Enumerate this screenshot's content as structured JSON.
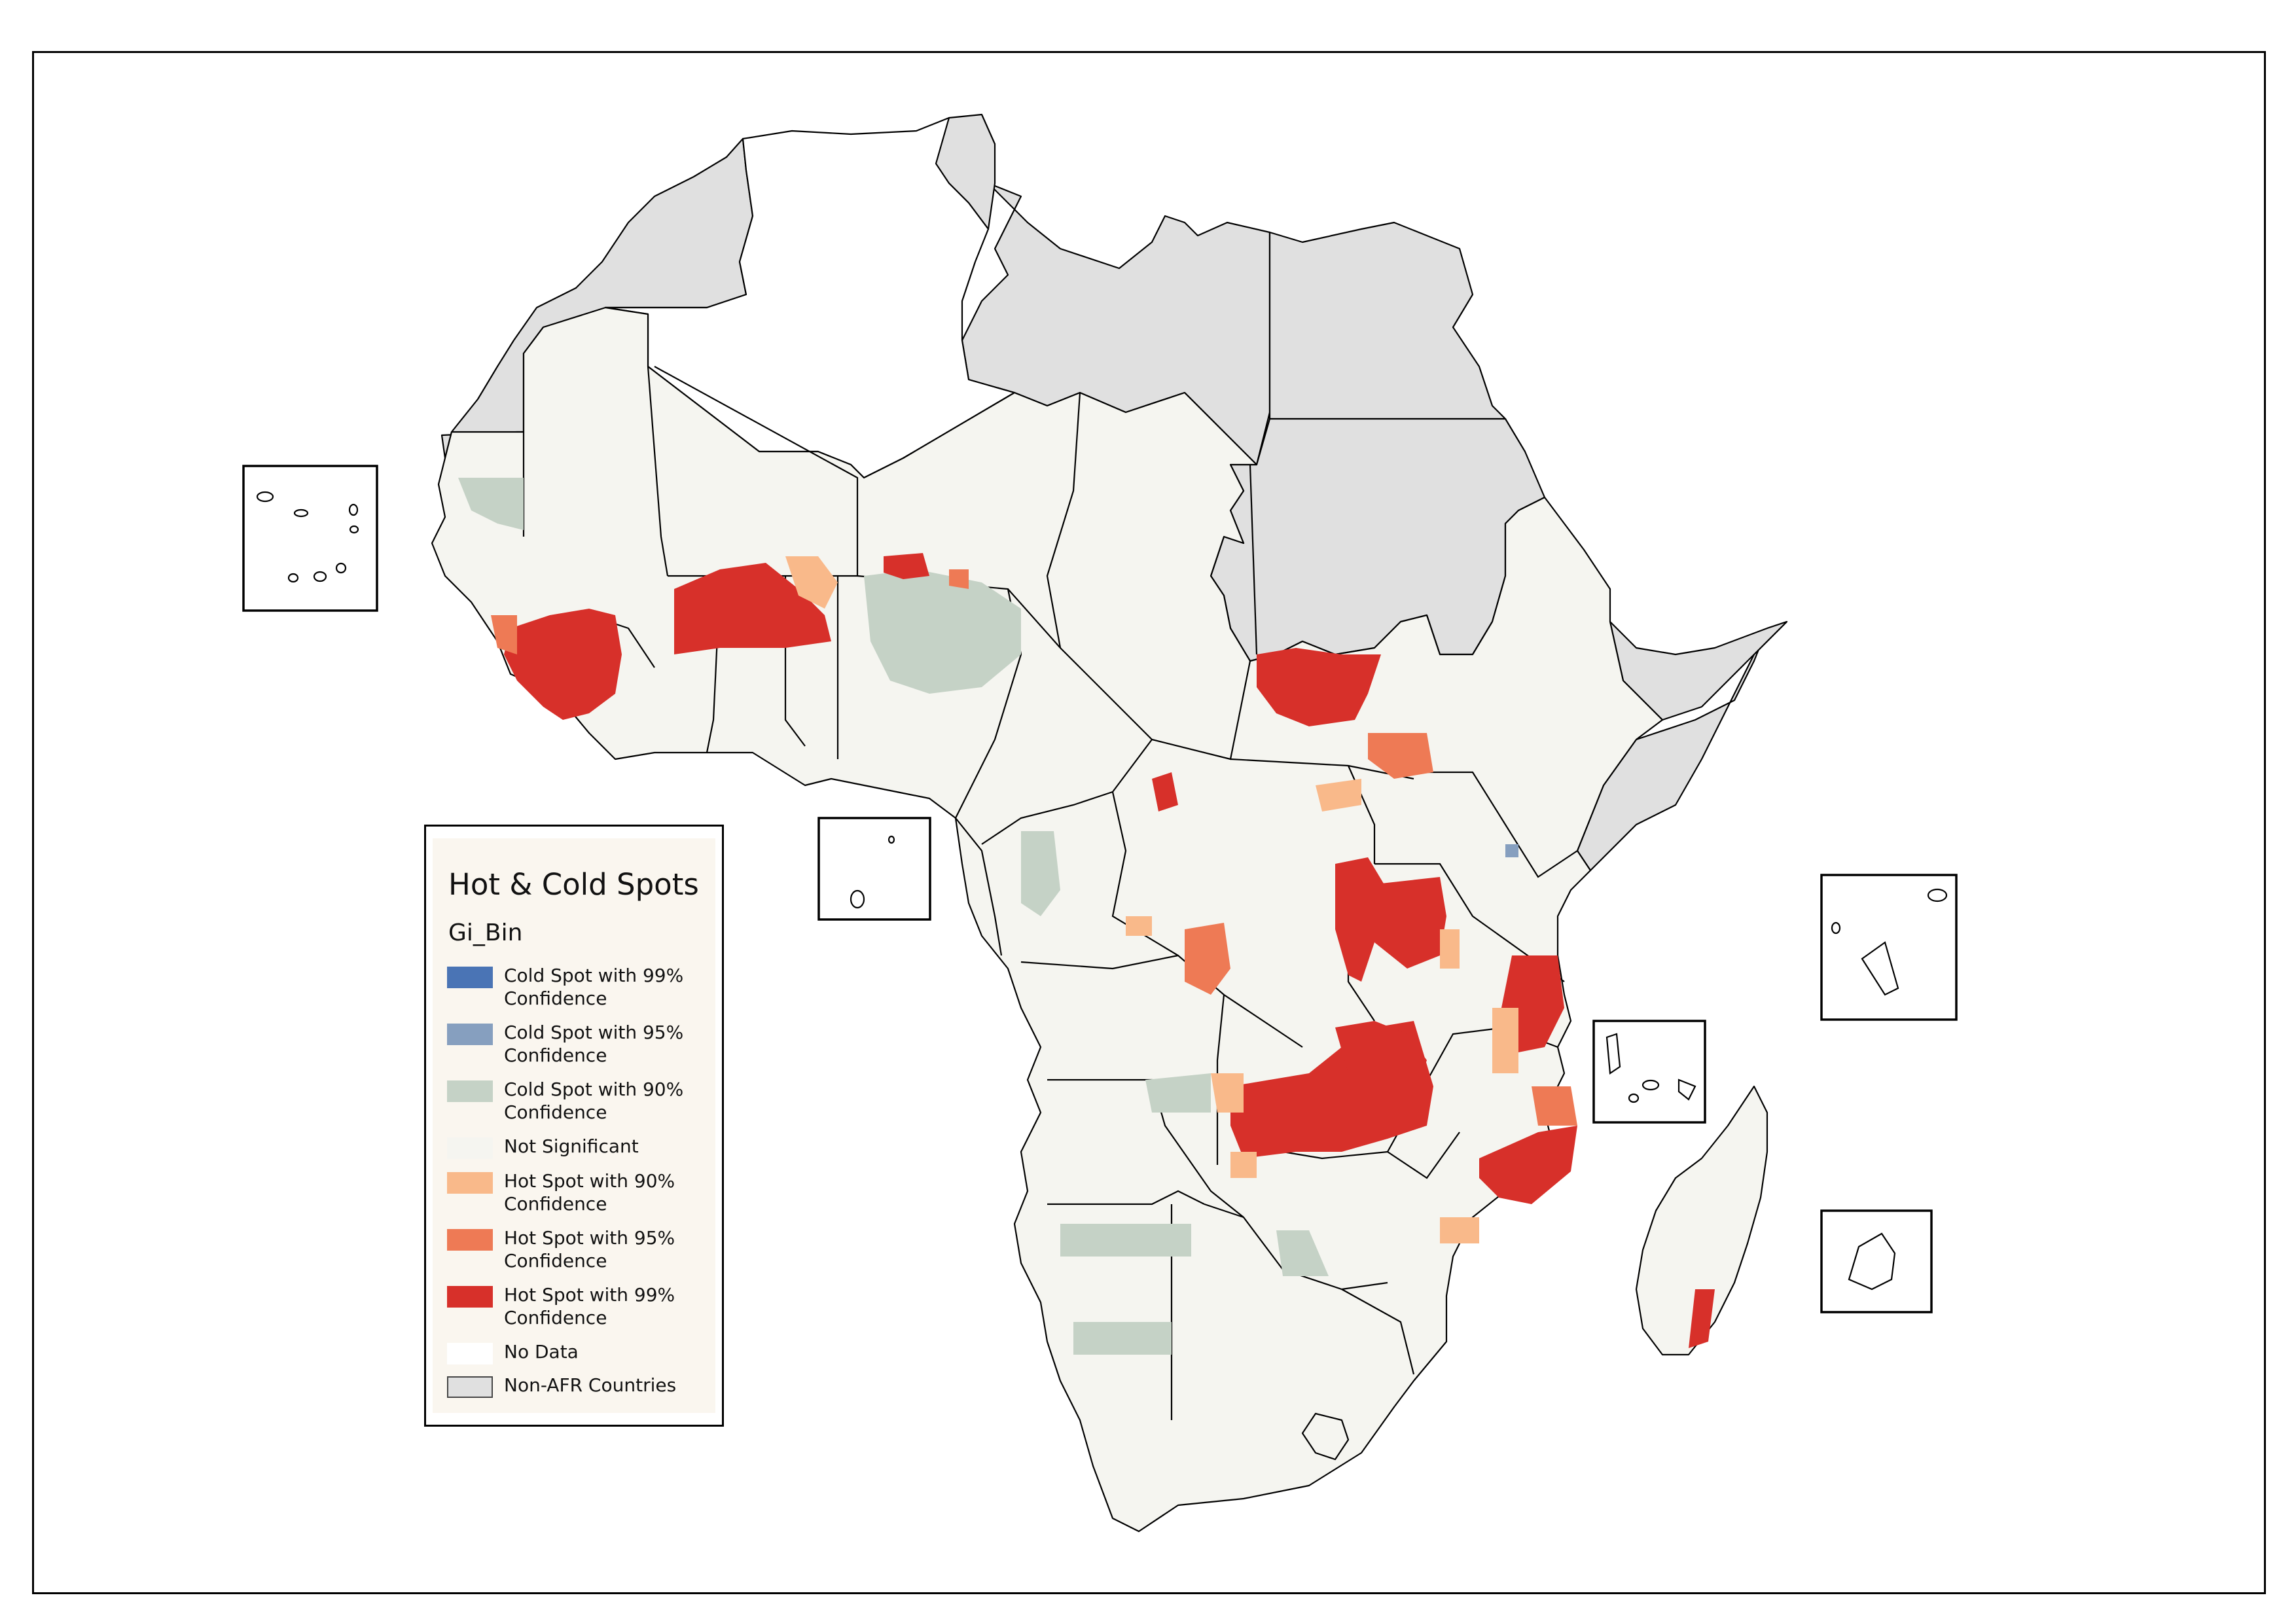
{
  "legend": {
    "title": "Hot & Cold Spots",
    "subtitle": "Gi_Bin",
    "items": [
      {
        "label": "Cold Spot with 99% Confidence",
        "color": "#4a74b5"
      },
      {
        "label": "Cold Spot with 95% Confidence",
        "color": "#869fbf"
      },
      {
        "label": "Cold Spot with 90% Confidence",
        "color": "#c5d2c6"
      },
      {
        "label": "Not Significant",
        "color": "#f5f5f0"
      },
      {
        "label": "Hot Spot with 90% Confidence",
        "color": "#f9b98a"
      },
      {
        "label": "Hot Spot with 95% Confidence",
        "color": "#ee7a55"
      },
      {
        "label": "Hot Spot with 99% Confidence",
        "color": "#d7302a"
      },
      {
        "label": "No Data",
        "color": "#ffffff"
      },
      {
        "label": "Non-AFR Countries",
        "color": "#e0e0e0"
      }
    ]
  }
}
